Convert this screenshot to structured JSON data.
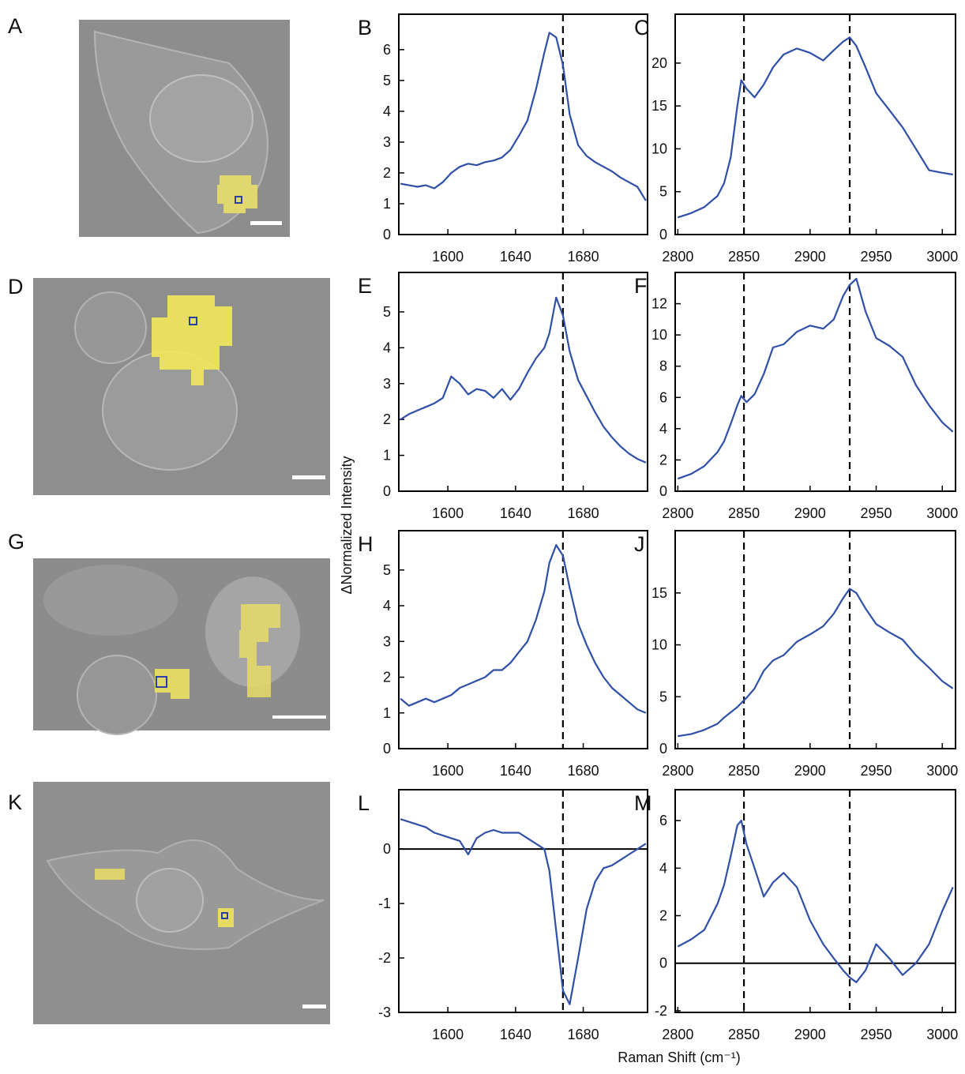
{
  "figure": {
    "ylabel": "ΔNormalized Intensity",
    "xlabel": "Raman Shift (cm⁻¹)",
    "image_panels": [
      {
        "label": "A"
      },
      {
        "label": "D"
      },
      {
        "label": "G"
      },
      {
        "label": "K"
      }
    ]
  },
  "chart_data": [
    {
      "type": "line",
      "panel_label": "B",
      "color": "#2f4fa8",
      "x": [
        1572,
        1577,
        1582,
        1587,
        1592,
        1597,
        1602,
        1607,
        1612,
        1617,
        1622,
        1627,
        1632,
        1637,
        1642,
        1647,
        1652,
        1657,
        1660,
        1664,
        1668,
        1672,
        1677,
        1682,
        1687,
        1692,
        1697,
        1702,
        1707,
        1712,
        1717
      ],
      "values": [
        1.65,
        1.6,
        1.55,
        1.6,
        1.5,
        1.7,
        2.0,
        2.2,
        2.3,
        2.25,
        2.35,
        2.4,
        2.5,
        2.75,
        3.2,
        3.7,
        4.7,
        5.9,
        6.55,
        6.4,
        5.5,
        3.9,
        2.9,
        2.55,
        2.35,
        2.2,
        2.05,
        1.85,
        1.7,
        1.55,
        1.1
      ],
      "xlim": [
        1571,
        1718
      ],
      "ylim": [
        0,
        7.15
      ],
      "xticks": [
        1600,
        1640,
        1680
      ],
      "yticks": [
        0,
        1,
        2,
        3,
        4,
        5,
        6
      ],
      "vlines": [
        1668
      ]
    },
    {
      "type": "line",
      "panel_label": "C",
      "color": "#2f4fa8",
      "x": [
        2800,
        2810,
        2820,
        2830,
        2835,
        2840,
        2845,
        2848,
        2852,
        2858,
        2865,
        2872,
        2880,
        2890,
        2900,
        2910,
        2918,
        2925,
        2930,
        2935,
        2942,
        2950,
        2960,
        2970,
        2980,
        2990,
        3000,
        3008
      ],
      "values": [
        2.0,
        2.5,
        3.2,
        4.5,
        6,
        9,
        15,
        18,
        17,
        16,
        17.5,
        19.5,
        21,
        21.7,
        21.2,
        20.3,
        21.5,
        22.5,
        23,
        22,
        19.5,
        16.5,
        14.5,
        12.5,
        10,
        7.5,
        7.2,
        7.0
      ],
      "xlim": [
        2798,
        3010
      ],
      "ylim": [
        0,
        25.7
      ],
      "xticks": [
        2800,
        2850,
        2900,
        2950,
        3000
      ],
      "yticks": [
        0,
        5,
        10,
        15,
        20
      ],
      "vlines": [
        2850,
        2930
      ]
    },
    {
      "type": "line",
      "panel_label": "E",
      "color": "#2f4fa8",
      "x": [
        1572,
        1577,
        1582,
        1587,
        1592,
        1597,
        1602,
        1607,
        1612,
        1617,
        1622,
        1627,
        1632,
        1637,
        1642,
        1647,
        1652,
        1657,
        1660,
        1664,
        1668,
        1672,
        1677,
        1682,
        1687,
        1692,
        1697,
        1702,
        1707,
        1712,
        1717
      ],
      "values": [
        2.0,
        2.15,
        2.25,
        2.35,
        2.45,
        2.6,
        3.2,
        3.0,
        2.7,
        2.85,
        2.8,
        2.6,
        2.85,
        2.55,
        2.85,
        3.3,
        3.7,
        4.0,
        4.4,
        5.4,
        4.9,
        3.9,
        3.1,
        2.65,
        2.2,
        1.8,
        1.5,
        1.25,
        1.05,
        0.9,
        0.8
      ],
      "xlim": [
        1571,
        1718
      ],
      "ylim": [
        0,
        6.1
      ],
      "xticks": [
        1600,
        1640,
        1680
      ],
      "yticks": [
        0,
        1,
        2,
        3,
        4,
        5
      ],
      "vlines": [
        1668
      ]
    },
    {
      "type": "line",
      "panel_label": "F",
      "color": "#2f4fa8",
      "x": [
        2800,
        2810,
        2820,
        2830,
        2835,
        2840,
        2845,
        2848,
        2852,
        2858,
        2865,
        2872,
        2880,
        2890,
        2900,
        2910,
        2918,
        2925,
        2930,
        2935,
        2942,
        2950,
        2960,
        2970,
        2980,
        2990,
        3000,
        3008
      ],
      "values": [
        0.8,
        1.1,
        1.6,
        2.5,
        3.2,
        4.3,
        5.5,
        6.1,
        5.7,
        6.2,
        7.5,
        9.2,
        9.4,
        10.2,
        10.6,
        10.4,
        11.0,
        12.5,
        13.2,
        13.6,
        11.5,
        9.8,
        9.3,
        8.6,
        6.8,
        5.5,
        4.4,
        3.8
      ],
      "xlim": [
        2798,
        3010
      ],
      "ylim": [
        0,
        14
      ],
      "xticks": [
        2800,
        2850,
        2900,
        2950,
        3000
      ],
      "yticks": [
        0,
        2,
        4,
        6,
        8,
        10,
        12
      ],
      "vlines": [
        2850,
        2930
      ]
    },
    {
      "type": "line",
      "panel_label": "H",
      "color": "#2f4fa8",
      "x": [
        1572,
        1577,
        1582,
        1587,
        1592,
        1597,
        1602,
        1607,
        1612,
        1617,
        1622,
        1627,
        1632,
        1637,
        1642,
        1647,
        1652,
        1657,
        1660,
        1664,
        1668,
        1672,
        1677,
        1682,
        1687,
        1692,
        1697,
        1702,
        1707,
        1712,
        1717
      ],
      "values": [
        1.4,
        1.2,
        1.3,
        1.4,
        1.3,
        1.4,
        1.5,
        1.7,
        1.8,
        1.9,
        2.0,
        2.2,
        2.2,
        2.4,
        2.7,
        3.0,
        3.6,
        4.4,
        5.2,
        5.7,
        5.4,
        4.5,
        3.5,
        2.9,
        2.4,
        2.0,
        1.7,
        1.5,
        1.3,
        1.1,
        1.0
      ],
      "xlim": [
        1571,
        1718
      ],
      "ylim": [
        0,
        6.1
      ],
      "xticks": [
        1600,
        1640,
        1680
      ],
      "yticks": [
        0,
        1,
        2,
        3,
        4,
        5
      ],
      "vlines": [
        1668
      ]
    },
    {
      "type": "line",
      "panel_label": "J",
      "color": "#2f4fa8",
      "x": [
        2800,
        2810,
        2820,
        2830,
        2835,
        2840,
        2845,
        2848,
        2852,
        2858,
        2865,
        2872,
        2880,
        2890,
        2900,
        2910,
        2918,
        2925,
        2930,
        2935,
        2942,
        2950,
        2960,
        2970,
        2980,
        2990,
        3000,
        3008
      ],
      "values": [
        1.2,
        1.4,
        1.8,
        2.4,
        3.0,
        3.5,
        4.0,
        4.4,
        4.9,
        5.8,
        7.5,
        8.5,
        9.0,
        10.3,
        11.0,
        11.8,
        13.0,
        14.5,
        15.4,
        15.0,
        13.5,
        12.0,
        11.2,
        10.5,
        9.0,
        7.8,
        6.5,
        5.8
      ],
      "xlim": [
        2798,
        3010
      ],
      "ylim": [
        0,
        21
      ],
      "xticks": [
        2800,
        2850,
        2900,
        2950,
        3000
      ],
      "yticks": [
        0,
        5,
        10,
        15
      ],
      "vlines": [
        2850,
        2930
      ]
    },
    {
      "type": "line",
      "panel_label": "L",
      "color": "#2f4fa8",
      "x": [
        1572,
        1577,
        1582,
        1587,
        1592,
        1597,
        1602,
        1607,
        1612,
        1617,
        1622,
        1627,
        1632,
        1637,
        1642,
        1647,
        1652,
        1657,
        1660,
        1664,
        1668,
        1672,
        1677,
        1682,
        1687,
        1692,
        1697,
        1702,
        1707,
        1712,
        1717
      ],
      "values": [
        0.55,
        0.5,
        0.45,
        0.4,
        0.3,
        0.25,
        0.2,
        0.15,
        -0.1,
        0.2,
        0.3,
        0.35,
        0.3,
        0.3,
        0.3,
        0.2,
        0.1,
        0.0,
        -0.4,
        -1.5,
        -2.6,
        -2.85,
        -2.0,
        -1.1,
        -0.6,
        -0.35,
        -0.3,
        -0.2,
        -0.1,
        0.0,
        0.1
      ],
      "xlim": [
        1571,
        1718
      ],
      "ylim": [
        -3,
        1.09
      ],
      "xticks": [
        1600,
        1640,
        1680
      ],
      "yticks": [
        -3,
        -2,
        -1,
        0
      ],
      "vlines": [
        1668
      ],
      "hlines": [
        0
      ]
    },
    {
      "type": "line",
      "panel_label": "M",
      "color": "#2f4fa8",
      "x": [
        2800,
        2810,
        2820,
        2830,
        2835,
        2840,
        2845,
        2848,
        2852,
        2858,
        2865,
        2872,
        2880,
        2890,
        2900,
        2910,
        2918,
        2925,
        2930,
        2935,
        2942,
        2950,
        2960,
        2970,
        2980,
        2990,
        3000,
        3008
      ],
      "values": [
        0.7,
        1.0,
        1.4,
        2.5,
        3.3,
        4.5,
        5.8,
        6.0,
        5.0,
        4.0,
        2.8,
        3.4,
        3.8,
        3.2,
        1.8,
        0.8,
        0.2,
        -0.3,
        -0.6,
        -0.8,
        -0.3,
        0.8,
        0.2,
        -0.5,
        0.0,
        0.8,
        2.2,
        3.2
      ],
      "xlim": [
        2798,
        3010
      ],
      "ylim": [
        -2.07,
        7.3
      ],
      "xticks": [
        2800,
        2850,
        2900,
        2950,
        3000
      ],
      "yticks": [
        -2,
        0,
        2,
        4,
        6
      ],
      "vlines": [
        2850,
        2930
      ],
      "hlines": [
        0
      ]
    }
  ]
}
